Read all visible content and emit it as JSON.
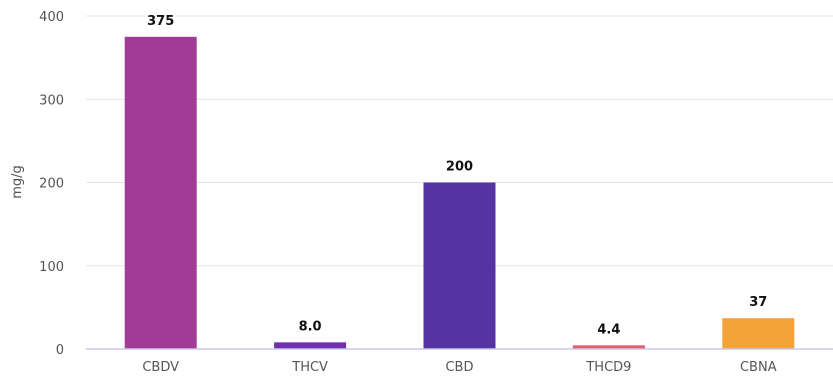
{
  "chart_data": {
    "type": "bar",
    "title": "",
    "xlabel": "",
    "ylabel": "mg/g",
    "ylim": [
      0,
      400
    ],
    "yticks": [
      0,
      100,
      200,
      300,
      400
    ],
    "grid": true,
    "categories": [
      "CBDV",
      "THCV",
      "CBD",
      "THCD9",
      "CBNA"
    ],
    "values": [
      375,
      8.0,
      200,
      4.4,
      37
    ],
    "value_labels": [
      "375",
      "8.0",
      "200",
      "4.4",
      "37"
    ],
    "colors": [
      "#a23b98",
      "#6f2fb0",
      "#5633a3",
      "#e25c6a",
      "#f4a23a"
    ]
  }
}
